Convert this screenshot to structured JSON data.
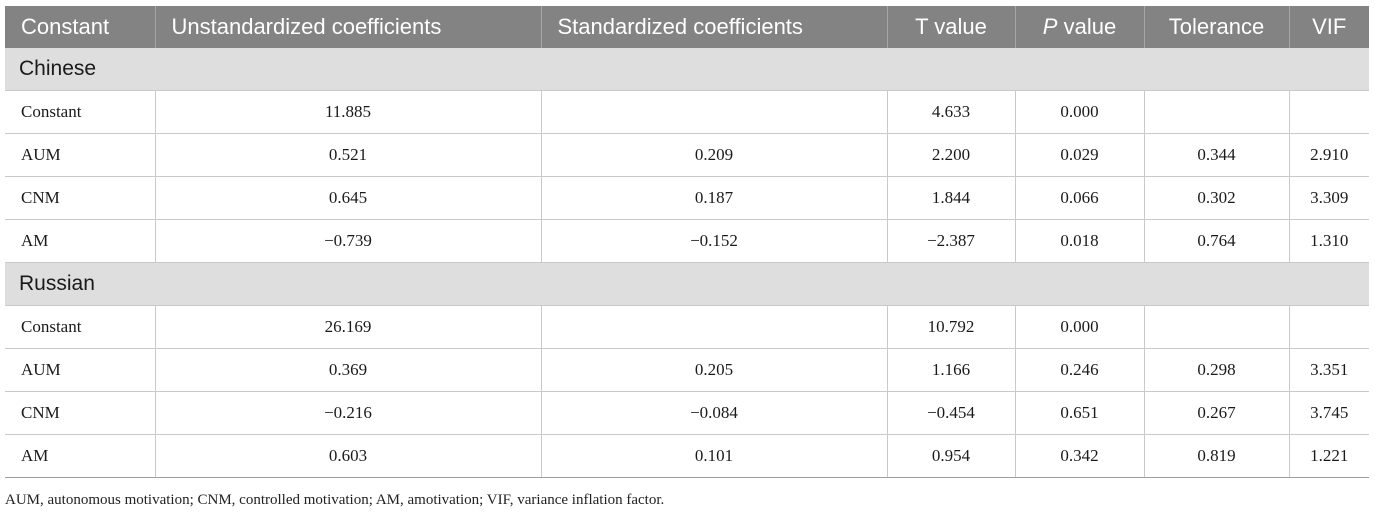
{
  "table": {
    "headers": [
      {
        "text": "Constant",
        "italic_prefix": ""
      },
      {
        "text": "Unstandardized coefficients",
        "italic_prefix": ""
      },
      {
        "text": "Standardized coefficients",
        "italic_prefix": ""
      },
      {
        "text": "T value",
        "italic_prefix": ""
      },
      {
        "text": " value",
        "italic_prefix": "P"
      },
      {
        "text": "Tolerance",
        "italic_prefix": ""
      },
      {
        "text": "VIF",
        "italic_prefix": ""
      }
    ],
    "groups": [
      {
        "name": "Chinese",
        "rows": [
          [
            "Constant",
            "11.885",
            "",
            "4.633",
            "0.000",
            "",
            ""
          ],
          [
            "AUM",
            "0.521",
            "0.209",
            "2.200",
            "0.029",
            "0.344",
            "2.910"
          ],
          [
            "CNM",
            "0.645",
            "0.187",
            "1.844",
            "0.066",
            "0.302",
            "3.309"
          ],
          [
            "AM",
            "−0.739",
            "−0.152",
            "−2.387",
            "0.018",
            "0.764",
            "1.310"
          ]
        ]
      },
      {
        "name": "Russian",
        "rows": [
          [
            "Constant",
            "26.169",
            "",
            "10.792",
            "0.000",
            "",
            ""
          ],
          [
            "AUM",
            "0.369",
            "0.205",
            "1.166",
            "0.246",
            "0.298",
            "3.351"
          ],
          [
            "CNM",
            "−0.216",
            "−0.084",
            "−0.454",
            "0.651",
            "0.267",
            "3.745"
          ],
          [
            "AM",
            "0.603",
            "0.101",
            "0.954",
            "0.342",
            "0.819",
            "1.221"
          ]
        ]
      }
    ]
  },
  "footnote": "AUM, autonomous motivation; CNM, controlled motivation; AM, amotivation; VIF, variance inflation factor.",
  "colors": {
    "header_bg": "#838383",
    "group_bg": "#dedede",
    "border": "#c9c9c9"
  }
}
